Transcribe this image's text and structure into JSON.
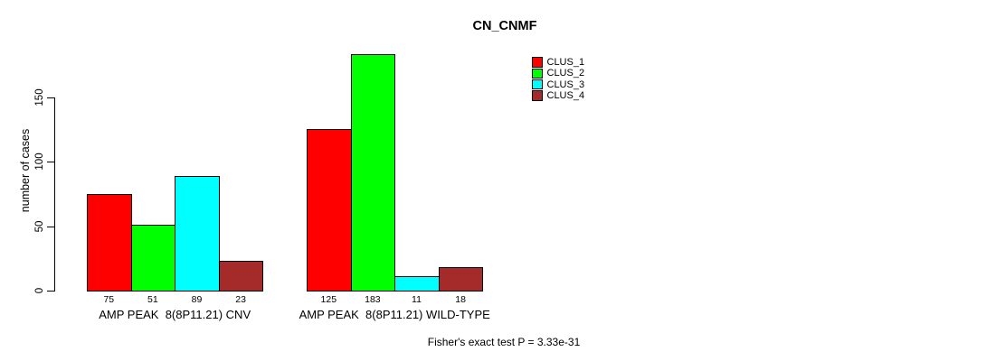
{
  "title": "CN_CNMF",
  "chart_data": {
    "type": "bar",
    "title": "CN_CNMF",
    "xlabel": "",
    "ylabel": "number of cases",
    "ylim": [
      0,
      185
    ],
    "yticks": [
      0,
      50,
      100,
      150
    ],
    "grid": false,
    "legend_position": "top-right",
    "categories": [
      "AMP PEAK  8(8P11.21) CNV",
      "AMP PEAK  8(8P11.21) WILD-TYPE"
    ],
    "series": [
      {
        "name": "CLUS_1",
        "color": "#ff0000",
        "values": [
          75,
          125
        ]
      },
      {
        "name": "CLUS_2",
        "color": "#00ff00",
        "values": [
          51,
          183
        ]
      },
      {
        "name": "CLUS_3",
        "color": "#00ffff",
        "values": [
          89,
          11
        ]
      },
      {
        "name": "CLUS_4",
        "color": "#a52a2a",
        "values": [
          23,
          18
        ]
      }
    ],
    "bar_value_labels": [
      [
        75,
        51,
        89,
        23
      ],
      [
        125,
        183,
        11,
        18
      ]
    ],
    "annotation": "Fisher's exact test P = 3.33e-31"
  }
}
